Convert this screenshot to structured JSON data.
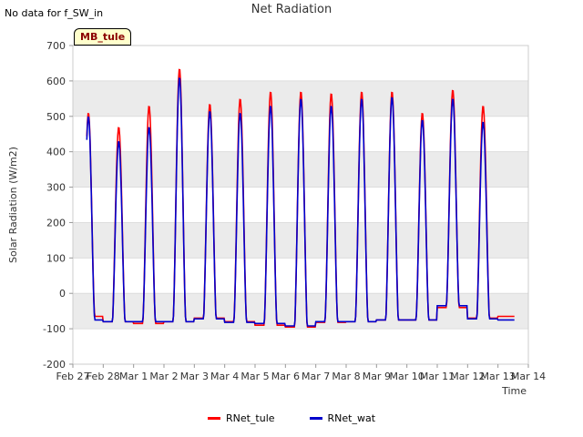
{
  "page_note": "No data for f_SW_in",
  "site_tag": "MB_tule",
  "colors": {
    "RNet_tule": "#ff0000",
    "RNet_wat": "#0000cc",
    "band": "#ebebeb",
    "grid": "#dddddd"
  },
  "chart_data": {
    "type": "line",
    "title": "Net Radiation",
    "xlabel": "Time",
    "ylabel": "Solar Radiation (W/m2)",
    "ylim": [
      -200,
      700
    ],
    "yticks": [
      -200,
      -100,
      0,
      100,
      200,
      300,
      400,
      500,
      600,
      700
    ],
    "xticks": [
      "Feb 27",
      "Feb 28",
      "Mar 1",
      "Mar 2",
      "Mar 3",
      "Mar 4",
      "Mar 5",
      "Mar 6",
      "Mar 7",
      "Mar 8",
      "Mar 9",
      "Mar 10",
      "Mar 11",
      "Mar 12",
      "Mar 13",
      "Mar 14"
    ],
    "xlim_days": [
      0,
      15
    ],
    "grid": true,
    "legend_placement": "bottom-center",
    "series": [
      {
        "name": "RNet_tule",
        "color": "#ff0000",
        "daily_peak": [
          510,
          470,
          530,
          635,
          535,
          550,
          570,
          570,
          565,
          570,
          570,
          510,
          575,
          530
        ],
        "night_level": [
          -65,
          -80,
          -85,
          -80,
          -70,
          -80,
          -90,
          -95,
          -82,
          -80,
          -75,
          -75,
          -40,
          -70,
          -65
        ]
      },
      {
        "name": "RNet_wat",
        "color": "#0000cc",
        "daily_peak": [
          500,
          430,
          470,
          610,
          515,
          510,
          530,
          550,
          530,
          550,
          555,
          490,
          550,
          485
        ],
        "night_level": [
          -75,
          -80,
          -80,
          -80,
          -72,
          -82,
          -85,
          -92,
          -80,
          -80,
          -75,
          -75,
          -35,
          -72,
          -75
        ]
      }
    ]
  }
}
